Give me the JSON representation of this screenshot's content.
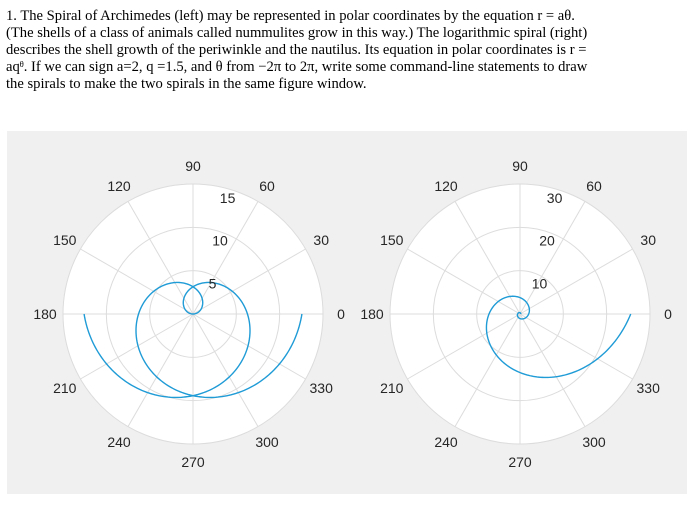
{
  "problem": {
    "lines": [
      "1. The Spiral of Archimedes (left) may be represented in polar coordinates by the equation r = aθ.",
      "(The shells of a class of animals called nummulites grow in this way.)  The logarithmic spiral (right)",
      "describes the shell growth of the periwinkle and the nautilus. Its equation in polar coordinates is r =",
      "aqᶿ. If we can sign a=2, q =1.5, and θ from −2π to 2π, write some command-line statements to draw",
      "the spirals to make the two spirals in the same figure window."
    ]
  },
  "colors": {
    "figure_bg": "#f0f0f0",
    "axes_bg": "#ffffff",
    "grid": "#dcdcdc",
    "spiral": "#1f9bd6",
    "text": "#262626"
  },
  "chart_data": [
    {
      "type": "polar-line",
      "name": "Spiral of Archimedes",
      "equation": "r = aθ",
      "a": 2,
      "theta_range": [
        -6.2832,
        6.2832
      ],
      "rlim": [
        0,
        15
      ],
      "r_ticks": [
        "5",
        "10",
        "15"
      ],
      "theta_tick_labels": [
        "0",
        "30",
        "60",
        "90",
        "120",
        "150",
        "180",
        "210",
        "240",
        "270",
        "300",
        "330"
      ],
      "grid": true
    },
    {
      "type": "polar-line",
      "name": "Logarithmic spiral",
      "equation": "r = aq^θ",
      "a": 2,
      "q": 1.5,
      "theta_range": [
        -6.2832,
        6.2832
      ],
      "rlim": [
        0,
        30
      ],
      "r_ticks": [
        "10",
        "20",
        "30"
      ],
      "theta_tick_labels": [
        "0",
        "30",
        "60",
        "90",
        "120",
        "150",
        "180",
        "210",
        "240",
        "270",
        "300",
        "330"
      ],
      "grid": true
    }
  ]
}
